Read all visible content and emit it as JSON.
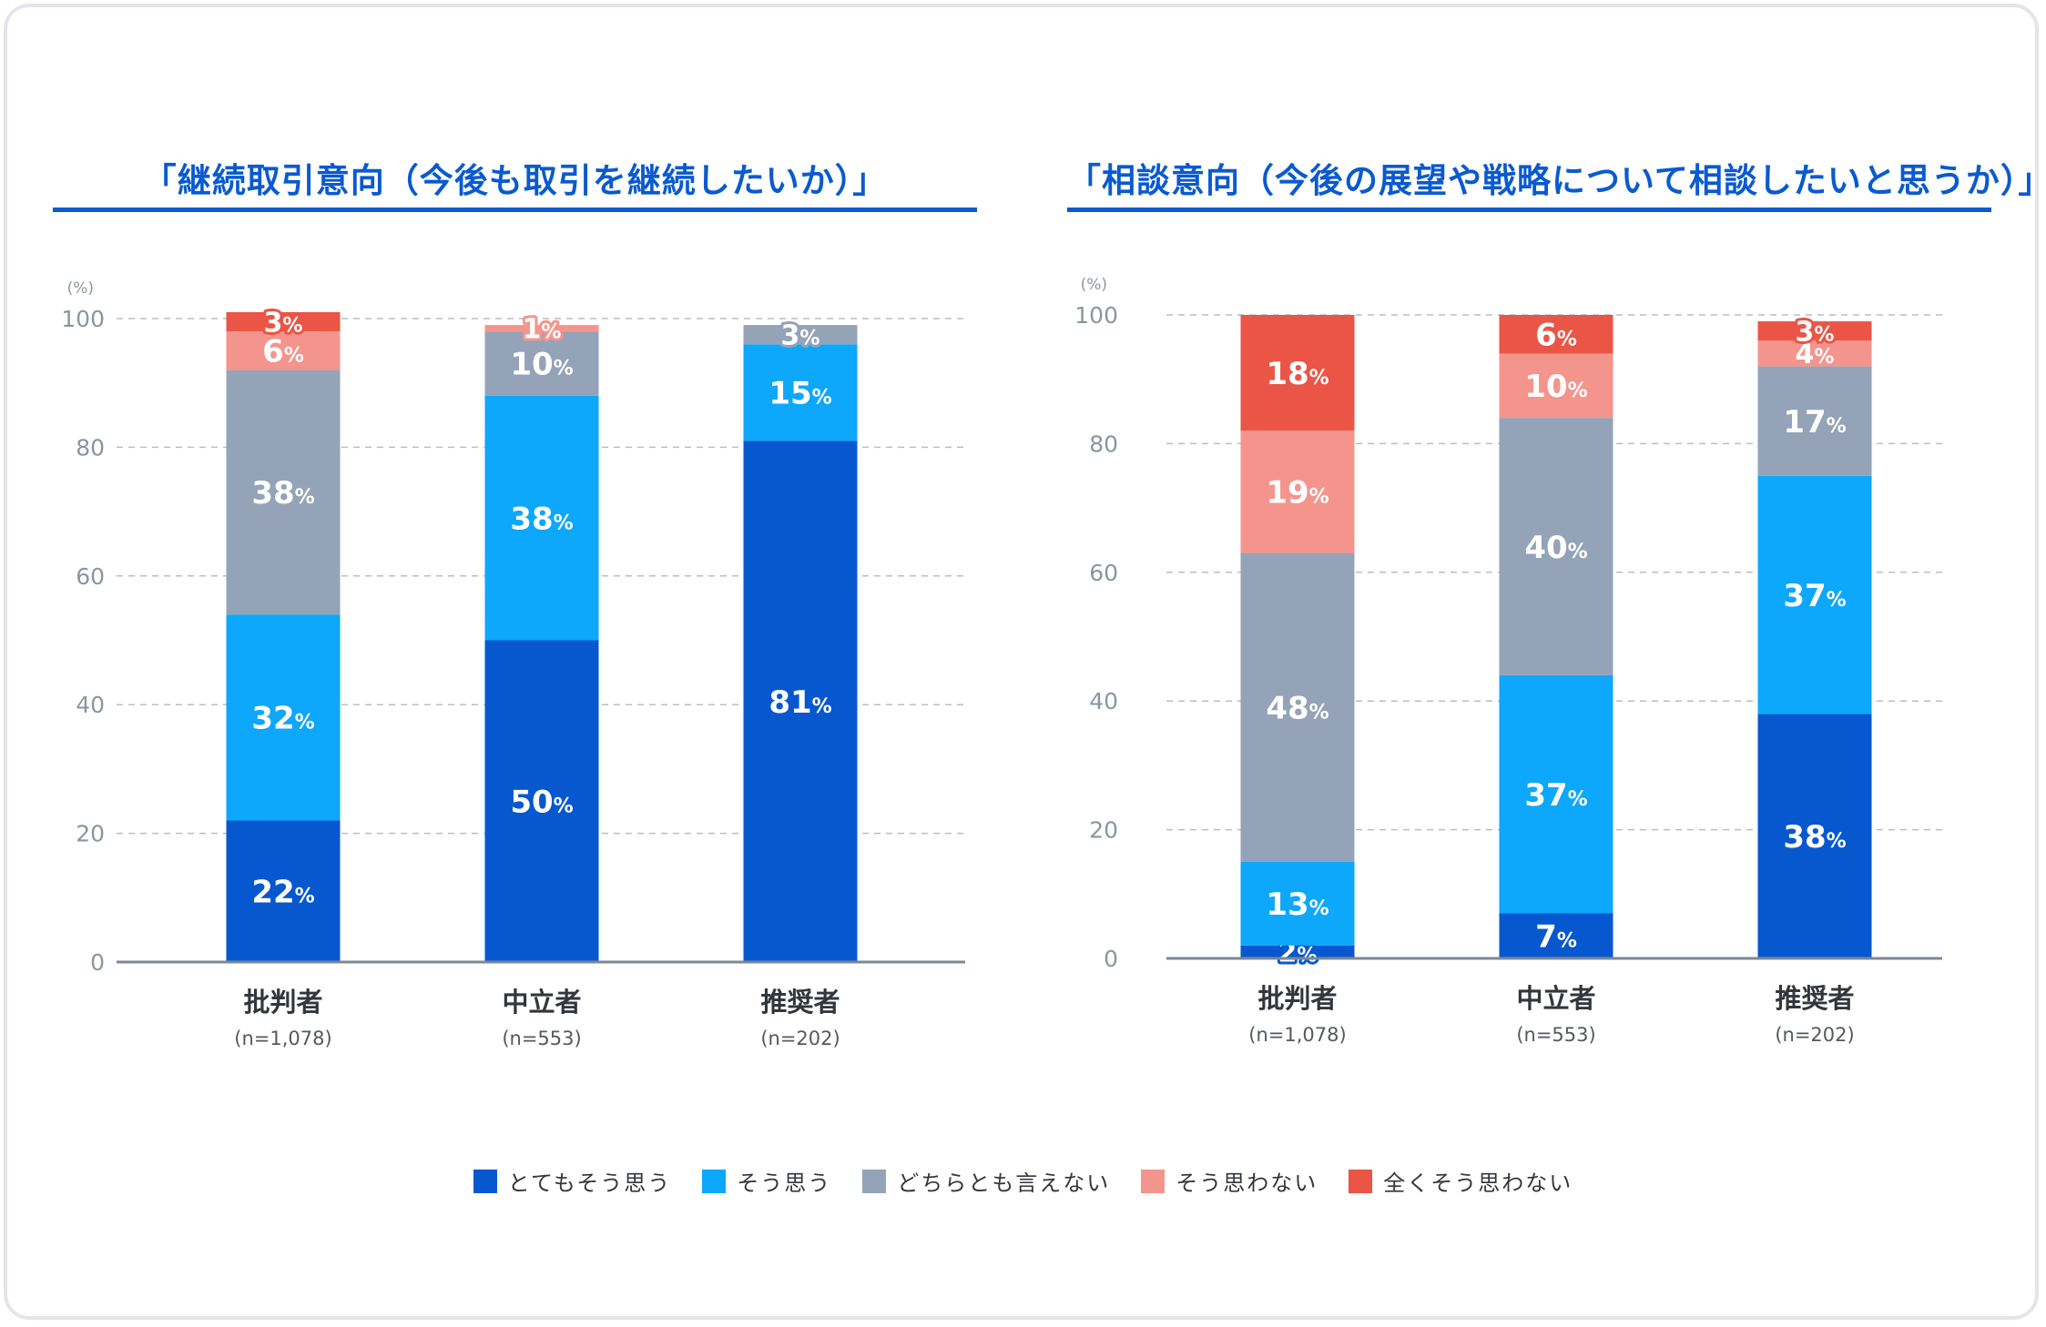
{
  "colors": {
    "very_agree": "#0758cf",
    "agree": "#0da7fb",
    "neutral": "#94a3b7",
    "disagree": "#f4958d",
    "very_disagree": "#ea5546",
    "title": "#0a5ad0"
  },
  "legend": [
    {
      "label": "とてもそう思う",
      "color": "#0758cf"
    },
    {
      "label": "そう思う",
      "color": "#0da7fb"
    },
    {
      "label": "どちらとも言えない",
      "color": "#94a3b7"
    },
    {
      "label": "そう思わない",
      "color": "#f4958d"
    },
    {
      "label": "全くそう思わない",
      "color": "#ea5546"
    }
  ],
  "chart_data": [
    {
      "type": "bar",
      "stacked": true,
      "title": "「継続取引意向（今後も取引を継続したいか）」",
      "ylabel": "(%)",
      "ylim": [
        0,
        100
      ],
      "yticks": [
        "0",
        "20",
        "40",
        "60",
        "80",
        "100"
      ],
      "percent_unit": "%",
      "categories": [
        "批判者",
        "中立者",
        "推奨者"
      ],
      "sample_sizes": [
        "(n=1,078)",
        "(n=553)",
        "(n=202)"
      ],
      "series": [
        {
          "name": "とてもそう思う",
          "values": [
            22,
            50,
            81
          ]
        },
        {
          "name": "そう思う",
          "values": [
            32,
            38,
            15
          ]
        },
        {
          "name": "どちらとも言えない",
          "values": [
            38,
            10,
            3
          ]
        },
        {
          "name": "そう思わない",
          "values": [
            6,
            1,
            0
          ]
        },
        {
          "name": "全くそう思わない",
          "values": [
            3,
            0,
            0
          ]
        }
      ]
    },
    {
      "type": "bar",
      "stacked": true,
      "title": "「相談意向（今後の展望や戦略について相談したいと思うか）」",
      "ylabel": "(%)",
      "ylim": [
        0,
        100
      ],
      "yticks": [
        "0",
        "20",
        "40",
        "60",
        "80",
        "100"
      ],
      "percent_unit": "%",
      "categories": [
        "批判者",
        "中立者",
        "推奨者"
      ],
      "sample_sizes": [
        "(n=1,078)",
        "(n=553)",
        "(n=202)"
      ],
      "series": [
        {
          "name": "とてもそう思う",
          "values": [
            2,
            7,
            38
          ]
        },
        {
          "name": "そう思う",
          "values": [
            13,
            37,
            37
          ]
        },
        {
          "name": "どちらとも言えない",
          "values": [
            48,
            40,
            17
          ]
        },
        {
          "name": "そう思わない",
          "values": [
            19,
            10,
            4
          ]
        },
        {
          "name": "全くそう思わない",
          "values": [
            18,
            6,
            3
          ]
        }
      ]
    }
  ]
}
